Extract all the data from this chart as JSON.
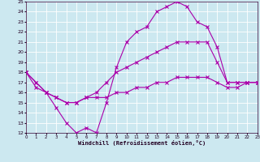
{
  "xlabel": "Windchill (Refroidissement éolien,°C)",
  "xlim": [
    0,
    23
  ],
  "ylim": [
    12,
    25
  ],
  "xticks": [
    0,
    1,
    2,
    3,
    4,
    5,
    6,
    7,
    8,
    9,
    10,
    11,
    12,
    13,
    14,
    15,
    16,
    17,
    18,
    19,
    20,
    21,
    22,
    23
  ],
  "yticks": [
    12,
    13,
    14,
    15,
    16,
    17,
    18,
    19,
    20,
    21,
    22,
    23,
    24,
    25
  ],
  "bg_color": "#cce8f0",
  "line_color": "#aa00aa",
  "grid_color": "#ffffff",
  "lines": [
    {
      "x": [
        0,
        1,
        2,
        3,
        4,
        5,
        6,
        7,
        8,
        9,
        10,
        11,
        12,
        13,
        14,
        15,
        16,
        17,
        18,
        19,
        20,
        21,
        22,
        23
      ],
      "y": [
        18,
        17,
        16,
        14.5,
        13,
        12,
        12.5,
        12,
        15,
        18.5,
        21,
        22,
        22.5,
        24,
        24.5,
        25,
        24.5,
        23,
        22.5,
        20.5,
        17,
        17,
        17,
        17
      ]
    },
    {
      "x": [
        0,
        1,
        2,
        3,
        4,
        5,
        6,
        7,
        8,
        9,
        10,
        11,
        12,
        13,
        14,
        15,
        16,
        17,
        18,
        19,
        20,
        21,
        22,
        23
      ],
      "y": [
        18,
        17,
        16,
        15.5,
        15,
        15,
        15.5,
        16,
        17,
        18,
        18.5,
        19,
        19.5,
        20,
        20.5,
        21,
        21,
        21,
        21,
        19,
        17,
        17,
        17,
        17
      ]
    },
    {
      "x": [
        0,
        1,
        2,
        3,
        4,
        5,
        6,
        7,
        8,
        9,
        10,
        11,
        12,
        13,
        14,
        15,
        16,
        17,
        18,
        19,
        20,
        21,
        22,
        23
      ],
      "y": [
        18,
        16.5,
        16,
        15.5,
        15,
        15,
        15.5,
        15.5,
        15.5,
        16,
        16,
        16.5,
        16.5,
        17,
        17,
        17.5,
        17.5,
        17.5,
        17.5,
        17,
        16.5,
        16.5,
        17,
        17
      ]
    }
  ]
}
